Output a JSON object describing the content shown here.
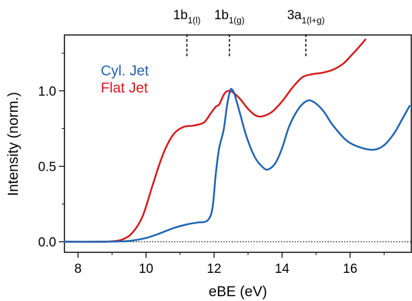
{
  "chart_data": {
    "type": "line",
    "xlabel": "eBE (eV)",
    "ylabel": "Intensity (norm.)",
    "xlim": [
      7.6,
      17.8
    ],
    "ylim": [
      -0.07,
      1.37
    ],
    "xticks": [
      8,
      10,
      12,
      14,
      16
    ],
    "xtick_labels": [
      "8",
      "10",
      "12",
      "14",
      "16"
    ],
    "yticks": [
      0.0,
      0.5,
      1.0
    ],
    "ytick_labels": [
      "0.0",
      "0.5",
      "1.0"
    ],
    "baseline": {
      "y": 0.0,
      "style": "dotted"
    },
    "legend": {
      "placement": "upper-left"
    },
    "series": [
      {
        "name": "Cyl. Jet",
        "color": "#1f63b4",
        "points": [
          [
            7.6,
            0.0
          ],
          [
            8.5,
            0.0
          ],
          [
            9.2,
            0.002
          ],
          [
            9.6,
            0.008
          ],
          [
            10.0,
            0.025
          ],
          [
            10.4,
            0.055
          ],
          [
            10.8,
            0.09
          ],
          [
            11.2,
            0.115
          ],
          [
            11.5,
            0.127
          ],
          [
            11.8,
            0.14
          ],
          [
            11.95,
            0.22
          ],
          [
            12.05,
            0.45
          ],
          [
            12.15,
            0.62
          ],
          [
            12.28,
            0.74
          ],
          [
            12.38,
            0.9
          ],
          [
            12.47,
            1.0
          ],
          [
            12.52,
            1.01
          ],
          [
            12.6,
            0.98
          ],
          [
            12.75,
            0.86
          ],
          [
            12.95,
            0.7
          ],
          [
            13.2,
            0.56
          ],
          [
            13.45,
            0.49
          ],
          [
            13.6,
            0.48
          ],
          [
            13.8,
            0.52
          ],
          [
            14.0,
            0.62
          ],
          [
            14.2,
            0.76
          ],
          [
            14.45,
            0.87
          ],
          [
            14.7,
            0.93
          ],
          [
            14.9,
            0.93
          ],
          [
            15.2,
            0.87
          ],
          [
            15.5,
            0.77
          ],
          [
            15.9,
            0.67
          ],
          [
            16.3,
            0.625
          ],
          [
            16.7,
            0.61
          ],
          [
            17.0,
            0.64
          ],
          [
            17.3,
            0.72
          ],
          [
            17.55,
            0.82
          ],
          [
            17.75,
            0.9
          ]
        ]
      },
      {
        "name": "Flat Jet",
        "color": "#d7191c",
        "points": [
          [
            7.6,
            0.0
          ],
          [
            8.5,
            0.0
          ],
          [
            9.0,
            0.003
          ],
          [
            9.3,
            0.015
          ],
          [
            9.6,
            0.06
          ],
          [
            9.9,
            0.17
          ],
          [
            10.2,
            0.38
          ],
          [
            10.5,
            0.58
          ],
          [
            10.8,
            0.71
          ],
          [
            11.1,
            0.76
          ],
          [
            11.4,
            0.77
          ],
          [
            11.7,
            0.79
          ],
          [
            11.9,
            0.85
          ],
          [
            12.05,
            0.895
          ],
          [
            12.15,
            0.91
          ],
          [
            12.3,
            0.98
          ],
          [
            12.42,
            1.0
          ],
          [
            12.55,
            0.99
          ],
          [
            12.75,
            0.95
          ],
          [
            13.0,
            0.88
          ],
          [
            13.2,
            0.84
          ],
          [
            13.4,
            0.83
          ],
          [
            13.7,
            0.86
          ],
          [
            14.0,
            0.93
          ],
          [
            14.3,
            1.02
          ],
          [
            14.6,
            1.09
          ],
          [
            14.9,
            1.11
          ],
          [
            15.2,
            1.12
          ],
          [
            15.5,
            1.14
          ],
          [
            15.8,
            1.18
          ],
          [
            16.1,
            1.25
          ],
          [
            16.3,
            1.3
          ],
          [
            16.45,
            1.34
          ]
        ]
      }
    ],
    "annotations": [
      {
        "main": "1b",
        "sub": "1(l)",
        "x": 11.2
      },
      {
        "main": "1b",
        "sub": "1(g)",
        "x": 12.45
      },
      {
        "main": "3a",
        "sub": "1(l+g)",
        "x": 14.7
      }
    ]
  }
}
